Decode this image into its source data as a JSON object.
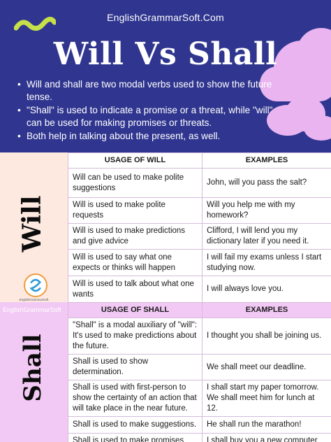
{
  "header": {
    "site": "EnglishGrammarSoft.Com",
    "title": "Will Vs Shall",
    "bullets": [
      "Will and shall are two modal verbs used to show the future tense.",
      "\"Shall\" is used to indicate a promise or a threat, while \"will\" can be used for making promises or threats.",
      "Both help in talking about the present, as well."
    ]
  },
  "side": {
    "will_label": "Will",
    "shall_label": "Shall",
    "brand": "EnglishGrammarSoft",
    "logo_caption": "EnglishGrammarSoft"
  },
  "will_table": {
    "headers": [
      "USAGE OF WILL",
      "EXAMPLES"
    ],
    "rows": [
      [
        "Will can be used to make polite suggestions",
        "John, will you pass the salt?"
      ],
      [
        "Will is used to make polite requests",
        "Will you help me with my homework?"
      ],
      [
        "Will is used to make predictions and give advice",
        "Clifford, I will lend you my dictionary later if you need it."
      ],
      [
        "Will is used to say what one expects or thinks will happen",
        "I will fail my exams unless I start studying now."
      ],
      [
        "Will is used to talk about what one wants",
        "I will always love you."
      ]
    ]
  },
  "shall_table": {
    "headers": [
      "USAGE OF SHALL",
      "EXAMPLES"
    ],
    "rows": [
      [
        "\"Shall\" is a modal auxiliary of \"will\": It's used to make predictions about the future.",
        "I thought you shall be joining us."
      ],
      [
        "Shall is used to show determination.",
        "We shall meet our deadline."
      ],
      [
        "Shall is used with first-person to show the certainty of an action that will take place in the near future.",
        "I shall start my paper tomorrow. We shall meet him for lunch at 12."
      ],
      [
        "Shall is used to make suggestions.",
        "He shall run the marathon!"
      ],
      [
        "Shall is used to make promises voluntarily.",
        "I shall buy you a new computer for your birthday present."
      ]
    ]
  },
  "colors": {
    "header_bg": "#30368f",
    "cloud": "#e9b4f0",
    "wave": "#c6e04a",
    "will_panel": "#fde9e0",
    "shall_panel": "#f2c9f4"
  }
}
